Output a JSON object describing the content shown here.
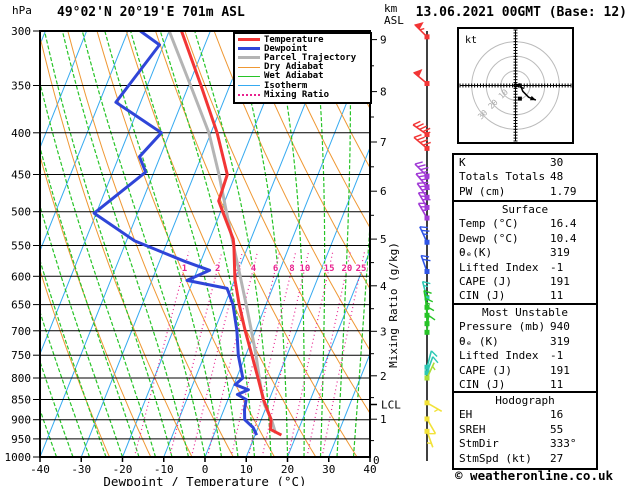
{
  "header": {
    "station": "49°02'N 20°19'E 701m ASL",
    "datetime": "13.06.2021 00GMT (Base: 12)"
  },
  "axes": {
    "pressure_unit": "hPa",
    "km_unit_1": "km",
    "km_unit_2": "ASL",
    "x_label": "Dewpoint / Temperature (°C)",
    "mixing_axis_label": "Mixing Ratio (g/kg)",
    "pressure_ticks": [
      300,
      350,
      400,
      450,
      500,
      550,
      600,
      650,
      700,
      750,
      800,
      850,
      900,
      950,
      1000
    ],
    "temp_ticks": [
      -40,
      -30,
      -20,
      -10,
      0,
      10,
      20,
      30,
      40
    ],
    "km_ticks": [
      0,
      1,
      2,
      3,
      4,
      5,
      6,
      7,
      8,
      9
    ],
    "lcl": {
      "label": "LCL",
      "pressure": 862
    }
  },
  "legend": {
    "items": [
      {
        "label": "Temperature",
        "color": "#f23535",
        "thick": 3,
        "dotted": false
      },
      {
        "label": "Dewpoint",
        "color": "#2f45d8",
        "thick": 3,
        "dotted": false
      },
      {
        "label": "Parcel Trajectory",
        "color": "#b4b4b4",
        "thick": 3,
        "dotted": false
      },
      {
        "label": "Dry Adiabat",
        "color": "#ef9834",
        "thick": 1,
        "dotted": false
      },
      {
        "label": "Wet Adiabat",
        "color": "#27c427",
        "thick": 1,
        "dotted": false
      },
      {
        "label": "Isotherm",
        "color": "#36aaf0",
        "thick": 1,
        "dotted": false
      },
      {
        "label": "Mixing Ratio",
        "color": "#e8228e",
        "thick": 2,
        "dotted": true
      }
    ]
  },
  "chart_data": {
    "type": "line",
    "diagram": "skew-T log-p sounding",
    "title": "49°02'N 20°19'E 701m ASL",
    "xlabel": "Dewpoint / Temperature (°C)",
    "ylabel": "hPa",
    "x_range": [
      -40,
      40
    ],
    "pressure_range": [
      300,
      1000
    ],
    "series": [
      {
        "name": "Temperature",
        "color": "#f23535",
        "width": 3,
        "points": [
          [
            300,
            -47
          ],
          [
            350,
            -37
          ],
          [
            400,
            -28.5
          ],
          [
            450,
            -22
          ],
          [
            485,
            -21.5
          ],
          [
            500,
            -19.5
          ],
          [
            540,
            -14.3
          ],
          [
            550,
            -13.5
          ],
          [
            605,
            -10
          ],
          [
            650,
            -6.5
          ],
          [
            700,
            -2.5
          ],
          [
            750,
            1.5
          ],
          [
            800,
            5.2
          ],
          [
            850,
            8.6
          ],
          [
            900,
            12.4
          ],
          [
            925,
            13.2
          ],
          [
            940,
            16.4
          ]
        ]
      },
      {
        "name": "Dewpoint",
        "color": "#2f45d8",
        "width": 3,
        "points": [
          [
            300,
            -57
          ],
          [
            312,
            -51
          ],
          [
            367,
            -56
          ],
          [
            400,
            -42
          ],
          [
            428,
            -45
          ],
          [
            447,
            -42
          ],
          [
            502,
            -50.5
          ],
          [
            543,
            -38
          ],
          [
            575,
            -24
          ],
          [
            590,
            -17
          ],
          [
            607,
            -21.5
          ],
          [
            621,
            -11
          ],
          [
            650,
            -8
          ],
          [
            700,
            -4.5
          ],
          [
            750,
            -1.8
          ],
          [
            800,
            1.5
          ],
          [
            815,
            0.3
          ],
          [
            827,
            4
          ],
          [
            838,
            1.8
          ],
          [
            850,
            4.4
          ],
          [
            875,
            5
          ],
          [
            900,
            6
          ],
          [
            920,
            8.8
          ],
          [
            940,
            10.4
          ]
        ]
      },
      {
        "name": "Parcel Trajectory",
        "color": "#b4b4b4",
        "width": 3,
        "points": [
          [
            300,
            -50
          ],
          [
            350,
            -39.5
          ],
          [
            400,
            -30.5
          ],
          [
            450,
            -24
          ],
          [
            500,
            -18.6
          ],
          [
            550,
            -13.6
          ],
          [
            600,
            -9
          ],
          [
            650,
            -4.8
          ],
          [
            700,
            -1
          ],
          [
            750,
            2.5
          ],
          [
            800,
            5.5
          ],
          [
            830,
            7.3
          ],
          [
            862,
            9.3
          ],
          [
            900,
            12.5
          ],
          [
            935,
            14.8
          ]
        ]
      }
    ],
    "mixing_ratio_lines_gkg": [
      1,
      2,
      3,
      4,
      6,
      8,
      10,
      15,
      20,
      25
    ],
    "grid": {
      "isotherm_step_c": 10,
      "dry_adiabat_theta_k": [
        250,
        450,
        10
      ],
      "wet_adiabat_start_c": [
        -48,
        40,
        4
      ]
    },
    "wind_barbs": [
      {
        "p": 305,
        "dir": 315,
        "spd": 55,
        "color": "#f23535"
      },
      {
        "p": 348,
        "dir": 310,
        "spd": 50,
        "color": "#f23535"
      },
      {
        "p": 402,
        "dir": 305,
        "spd": 45,
        "color": "#f23535"
      },
      {
        "p": 418,
        "dir": 310,
        "spd": 40,
        "color": "#f23535"
      },
      {
        "p": 452,
        "dir": 315,
        "spd": 35,
        "color": "#a13ad6"
      },
      {
        "p": 466,
        "dir": 320,
        "spd": 35,
        "color": "#a13ad6"
      },
      {
        "p": 480,
        "dir": 325,
        "spd": 30,
        "color": "#a13ad6"
      },
      {
        "p": 494,
        "dir": 330,
        "spd": 30,
        "color": "#a13ad6"
      },
      {
        "p": 509,
        "dir": 330,
        "spd": 25,
        "color": "#a13ad6"
      },
      {
        "p": 545,
        "dir": 335,
        "spd": 25,
        "color": "#2f55e6"
      },
      {
        "p": 592,
        "dir": 340,
        "spd": 20,
        "color": "#2f55e6"
      },
      {
        "p": 638,
        "dir": 345,
        "spd": 15,
        "color": "#2cc8b4"
      },
      {
        "p": 655,
        "dir": 350,
        "spd": 15,
        "color": "#27c427"
      },
      {
        "p": 670,
        "dir": 355,
        "spd": 15,
        "color": "#27c427"
      },
      {
        "p": 686,
        "dir": 0,
        "spd": 12,
        "color": "#27c427"
      },
      {
        "p": 703,
        "dir": 5,
        "spd": 10,
        "color": "#27c427"
      },
      {
        "p": 776,
        "dir": 15,
        "spd": 10,
        "color": "#2cc8b4"
      },
      {
        "p": 788,
        "dir": 20,
        "spd": 8,
        "color": "#2cc8b4"
      },
      {
        "p": 800,
        "dir": 25,
        "spd": 5,
        "color": "#aade37"
      },
      {
        "p": 858,
        "dir": 120,
        "spd": 5,
        "color": "#f2e239"
      },
      {
        "p": 898,
        "dir": 150,
        "spd": 8,
        "color": "#f2e239"
      },
      {
        "p": 930,
        "dir": 160,
        "spd": 5,
        "color": "#f2e239"
      }
    ]
  },
  "hodograph": {
    "unit_label": "kt",
    "rings_kt": [
      10,
      20,
      30
    ],
    "ring_labels": [
      "10",
      "20",
      "30"
    ],
    "trace_kt": [
      [
        0,
        0
      ],
      [
        3,
        1
      ],
      [
        5,
        -4
      ],
      [
        9,
        -8
      ],
      [
        14,
        -10
      ]
    ],
    "storm_arrow_kt": [
      [
        0,
        0
      ],
      [
        6,
        -2
      ]
    ],
    "marker_kt": [
      3,
      -9
    ]
  },
  "panel": {
    "indices": {
      "rows": [
        [
          "K",
          "30"
        ],
        [
          "Totals Totals",
          "48"
        ],
        [
          "PW (cm)",
          "1.79"
        ]
      ]
    },
    "surface": {
      "title": "Surface",
      "rows": [
        [
          "Temp (°C)",
          "16.4"
        ],
        [
          "Dewp (°C)",
          "10.4"
        ],
        [
          "θₑ(K)",
          "319"
        ],
        [
          "Lifted Index",
          "-1"
        ],
        [
          "CAPE (J)",
          "191"
        ],
        [
          "CIN (J)",
          "11"
        ]
      ]
    },
    "most_unstable": {
      "title": "Most Unstable",
      "rows": [
        [
          "Pressure (mb)",
          "940"
        ],
        [
          "θₑ (K)",
          "319"
        ],
        [
          "Lifted Index",
          "-1"
        ],
        [
          "CAPE (J)",
          "191"
        ],
        [
          "CIN (J)",
          "11"
        ]
      ]
    },
    "hodograph_stats": {
      "title": "Hodograph",
      "rows": [
        [
          "EH",
          "16"
        ],
        [
          "SREH",
          "55"
        ],
        [
          "StmDir",
          "333°"
        ],
        [
          "StmSpd (kt)",
          "27"
        ]
      ]
    }
  },
  "footer": {
    "text": "© weatheronline.co.uk"
  }
}
